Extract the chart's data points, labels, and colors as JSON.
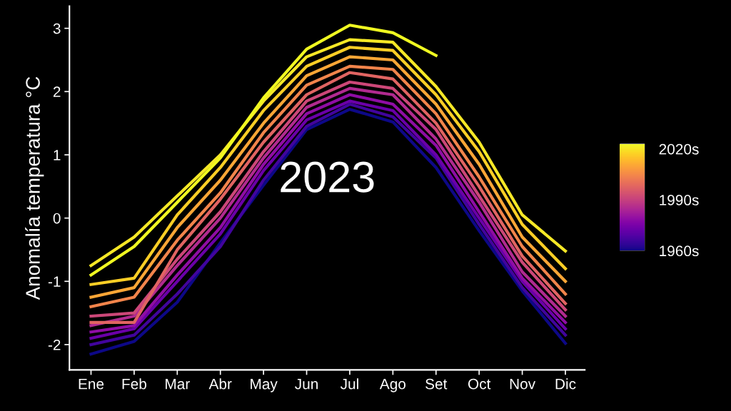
{
  "chart_data": {
    "type": "line",
    "ylabel": "Anomalía temperatura °C",
    "categories": [
      "Ene",
      "Feb",
      "Mar",
      "Abr",
      "May",
      "Jun",
      "Jul",
      "Ago",
      "Set",
      "Oct",
      "Nov",
      "Dic"
    ],
    "series": [
      {
        "color": "#0d0887",
        "values": [
          -2.15,
          -1.95,
          -1.33,
          -0.39,
          0.52,
          1.4,
          1.72,
          1.52,
          0.8,
          -0.2,
          -1.15,
          -1.98
        ]
      },
      {
        "color": "#41049d",
        "values": [
          -2.0,
          -1.85,
          -1.2,
          -0.45,
          0.6,
          1.45,
          1.8,
          1.6,
          0.95,
          -0.1,
          -1.1,
          -1.85
        ]
      },
      {
        "color": "#6a00a8",
        "values": [
          -1.9,
          -1.75,
          -1.0,
          -0.25,
          0.75,
          1.55,
          1.85,
          1.7,
          1.0,
          0.0,
          -1.0,
          -1.75
        ]
      },
      {
        "color": "#8f0da4",
        "values": [
          -1.8,
          -1.7,
          -0.9,
          -0.15,
          0.85,
          1.65,
          1.95,
          1.8,
          1.15,
          0.1,
          -0.95,
          -1.65
        ]
      },
      {
        "color": "#b12a90",
        "values": [
          -1.7,
          -1.55,
          -0.75,
          0.0,
          0.95,
          1.75,
          2.05,
          1.95,
          1.25,
          0.25,
          -0.85,
          -1.55
        ]
      },
      {
        "color": "#cc4778",
        "values": [
          -1.55,
          -1.5,
          -0.65,
          0.1,
          1.05,
          1.85,
          2.15,
          2.05,
          1.4,
          0.35,
          -0.7,
          -1.45
        ]
      },
      {
        "color": "#e16462",
        "values": [
          -1.65,
          -1.65,
          -0.5,
          0.3,
          1.2,
          1.95,
          2.3,
          2.2,
          1.5,
          0.5,
          -0.6,
          -1.35
        ]
      },
      {
        "color": "#f2844b",
        "values": [
          -1.4,
          -1.25,
          -0.35,
          0.4,
          1.35,
          2.1,
          2.4,
          2.35,
          1.65,
          0.65,
          -0.45,
          -1.2
        ]
      },
      {
        "color": "#fca636",
        "values": [
          -1.25,
          -1.1,
          -0.15,
          0.6,
          1.5,
          2.25,
          2.55,
          2.5,
          1.8,
          0.85,
          -0.3,
          -1.0
        ]
      },
      {
        "color": "#fcce25",
        "values": [
          -1.05,
          -0.95,
          0.05,
          0.8,
          1.7,
          2.4,
          2.7,
          2.65,
          1.95,
          1.05,
          -0.1,
          -0.8
        ]
      },
      {
        "color": "#f6e826",
        "values": [
          -0.75,
          -0.3,
          0.35,
          1.0,
          1.85,
          2.55,
          2.82,
          2.78,
          2.08,
          1.2,
          0.05,
          -0.52
        ]
      },
      {
        "color": "#f0f921",
        "values": [
          -0.9,
          -0.45,
          0.25,
          0.95,
          1.9,
          2.67,
          3.05,
          2.93,
          2.57,
          null,
          null,
          null
        ]
      }
    ],
    "ylim": [
      -2.4,
      3.35
    ],
    "yticks": [
      -2,
      -1,
      0,
      1,
      2,
      3
    ],
    "clim": [
      1960,
      2023
    ],
    "cticks": [
      {
        "value": 1960,
        "label": "1960s"
      },
      {
        "value": 1990,
        "label": "1990s"
      },
      {
        "value": 2020,
        "label": "2020s"
      }
    ],
    "annotations": [
      "2023"
    ],
    "grid": false
  }
}
